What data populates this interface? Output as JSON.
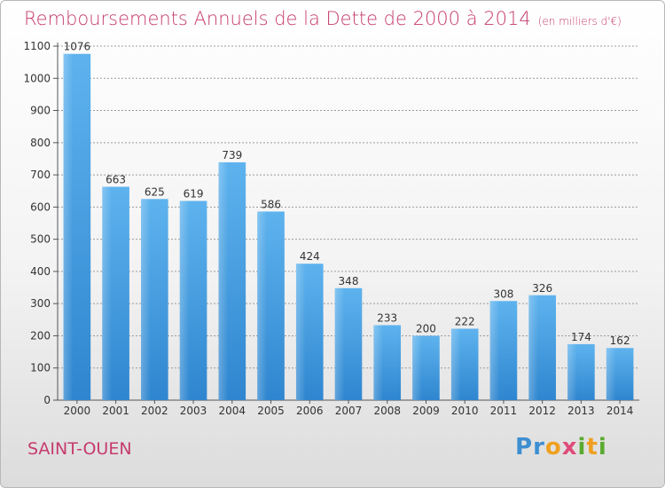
{
  "chart_data": {
    "type": "bar",
    "title": "Remboursements Annuels de la Dette de 2000 à 2014",
    "subtitle": "(en milliers d'€)",
    "categories": [
      "2000",
      "2001",
      "2002",
      "2003",
      "2004",
      "2005",
      "2006",
      "2007",
      "2008",
      "2009",
      "2010",
      "2011",
      "2012",
      "2013",
      "2014"
    ],
    "values": [
      1076,
      663,
      625,
      619,
      739,
      586,
      424,
      348,
      233,
      200,
      222,
      308,
      326,
      174,
      162
    ],
    "ylim": [
      0,
      1100
    ],
    "yticks": [
      0,
      100,
      200,
      300,
      400,
      500,
      600,
      700,
      800,
      900,
      1000,
      1100
    ],
    "grid": true,
    "bar_color": "#4aa3e6"
  },
  "footer": {
    "commune": "SAINT-OUEN",
    "logo_letters": [
      "P",
      "r",
      "o",
      "x",
      "i",
      "t",
      "i"
    ]
  }
}
